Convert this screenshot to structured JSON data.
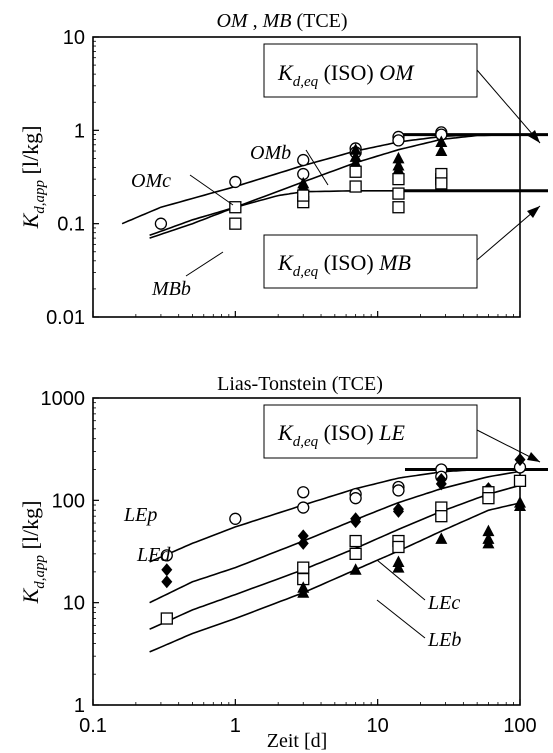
{
  "chart_data": [
    {
      "type": "scatter",
      "title": "OM , MB (TCE)",
      "title_parts": [
        "OM",
        " , ",
        "MB",
        " (TCE)"
      ],
      "ylabel": "K d,app [l/kg]",
      "xlabel": "",
      "x_scale": "log",
      "y_scale": "log",
      "xlim": [
        0.1,
        100
      ],
      "ylim": [
        0.01,
        10
      ],
      "y_ticks": [
        "0.01",
        "0.1",
        "1",
        "10"
      ],
      "x_ticks": [],
      "grid": false,
      "series": [
        {
          "name": "OMc",
          "marker": "circle",
          "points": [
            [
              0.3,
              0.1
            ],
            [
              1,
              0.28
            ],
            [
              3,
              0.48
            ],
            [
              3,
              0.34
            ],
            [
              7,
              0.64
            ],
            [
              7,
              0.58
            ],
            [
              14,
              0.85
            ],
            [
              14,
              0.78
            ],
            [
              28,
              0.95
            ],
            [
              28,
              0.9
            ]
          ]
        },
        {
          "name": "OMb",
          "marker": "triangle",
          "points": [
            [
              3,
              0.27
            ],
            [
              3,
              0.25
            ],
            [
              7,
              0.62
            ],
            [
              7,
              0.52
            ],
            [
              7,
              0.45
            ],
            [
              14,
              0.5
            ],
            [
              14,
              0.42
            ],
            [
              14,
              0.38
            ],
            [
              28,
              0.75
            ],
            [
              28,
              0.6
            ]
          ]
        },
        {
          "name": "MBb",
          "marker": "square",
          "points": [
            [
              1,
              0.1
            ],
            [
              1,
              0.15
            ],
            [
              3,
              0.17
            ],
            [
              3,
              0.2
            ],
            [
              7,
              0.36
            ],
            [
              7,
              0.25
            ],
            [
              14,
              0.15
            ],
            [
              14,
              0.21
            ],
            [
              14,
              0.3
            ],
            [
              28,
              0.3
            ],
            [
              28,
              0.34
            ],
            [
              28,
              0.27
            ]
          ]
        }
      ],
      "fit_curves": [
        {
          "name": "OMc",
          "points": [
            [
              0.16,
              0.1
            ],
            [
              0.3,
              0.15
            ],
            [
              1,
              0.25
            ],
            [
              3,
              0.42
            ],
            [
              7,
              0.6
            ],
            [
              14,
              0.75
            ],
            [
              28,
              0.86
            ],
            [
              50,
              0.9
            ],
            [
              100,
              0.9
            ]
          ]
        },
        {
          "name": "OMb",
          "points": [
            [
              0.25,
              0.07
            ],
            [
              0.5,
              0.1
            ],
            [
              1,
              0.15
            ],
            [
              3,
              0.28
            ],
            [
              7,
              0.45
            ],
            [
              14,
              0.62
            ],
            [
              28,
              0.8
            ],
            [
              50,
              0.88
            ],
            [
              100,
              0.9
            ]
          ]
        },
        {
          "name": "MBb",
          "points": [
            [
              0.25,
              0.075
            ],
            [
              0.5,
              0.11
            ],
            [
              1,
              0.15
            ],
            [
              2,
              0.2
            ],
            [
              3,
              0.22
            ],
            [
              7,
              0.225
            ],
            [
              14,
              0.225
            ],
            [
              50,
              0.225
            ],
            [
              100,
              0.225
            ]
          ]
        }
      ],
      "equilibrium_lines": [
        {
          "name": "OM",
          "value": 0.9
        },
        {
          "name": "MB",
          "value": 0.225
        }
      ],
      "annotations": [
        {
          "label_main": "K",
          "label_sub": "d,eq",
          "label_text": " (ISO) ",
          "label_italic": "OM"
        },
        {
          "label_main": "K",
          "label_sub": "d,eq",
          "label_text": " (ISO) ",
          "label_italic": "MB"
        }
      ]
    },
    {
      "type": "scatter",
      "title": "Lias-Tonstein (TCE)",
      "ylabel": "K d,app [l/kg]",
      "xlabel": "Zeit [d]",
      "x_scale": "log",
      "y_scale": "log",
      "xlim": [
        0.1,
        100
      ],
      "ylim": [
        1,
        1000
      ],
      "y_ticks": [
        "1",
        "10",
        "100",
        "1000"
      ],
      "x_ticks": [
        "0.1",
        "1",
        "10",
        "100"
      ],
      "grid": false,
      "series": [
        {
          "name": "LEp",
          "marker": "circle",
          "points": [
            [
              0.33,
              29
            ],
            [
              1,
              66
            ],
            [
              3,
              120
            ],
            [
              3,
              85
            ],
            [
              7,
              115
            ],
            [
              7,
              105
            ],
            [
              14,
              135
            ],
            [
              14,
              125
            ],
            [
              28,
              200
            ],
            [
              28,
              170
            ],
            [
              100,
              210
            ]
          ]
        },
        {
          "name": "LEd",
          "marker": "diamond",
          "points": [
            [
              0.33,
              21
            ],
            [
              0.33,
              16
            ],
            [
              3,
              45
            ],
            [
              3,
              38
            ],
            [
              7,
              66
            ],
            [
              7,
              62
            ],
            [
              14,
              82
            ],
            [
              14,
              78
            ],
            [
              28,
              160
            ],
            [
              28,
              145
            ],
            [
              60,
              130
            ],
            [
              100,
              250
            ]
          ]
        },
        {
          "name": "LEc",
          "marker": "square",
          "points": [
            [
              0.33,
              7
            ],
            [
              3,
              22
            ],
            [
              3,
              17
            ],
            [
              7,
              40
            ],
            [
              7,
              30
            ],
            [
              14,
              40
            ],
            [
              14,
              35
            ],
            [
              28,
              85
            ],
            [
              28,
              70
            ],
            [
              60,
              120
            ],
            [
              60,
              105
            ],
            [
              100,
              155
            ]
          ]
        },
        {
          "name": "LEb",
          "marker": "triangle",
          "points": [
            [
              3,
              14
            ],
            [
              3,
              12.5
            ],
            [
              7,
              21
            ],
            [
              14,
              25
            ],
            [
              14,
              22
            ],
            [
              28,
              42
            ],
            [
              60,
              50
            ],
            [
              60,
              42
            ],
            [
              60,
              38
            ],
            [
              100,
              95
            ],
            [
              100,
              88
            ]
          ]
        }
      ],
      "fit_curves": [
        {
          "name": "LEp",
          "points": [
            [
              0.25,
              25
            ],
            [
              0.5,
              38
            ],
            [
              1,
              55
            ],
            [
              3,
              90
            ],
            [
              7,
              130
            ],
            [
              14,
              165
            ],
            [
              28,
              190
            ],
            [
              50,
              200
            ],
            [
              100,
              200
            ]
          ]
        },
        {
          "name": "LEd",
          "points": [
            [
              0.25,
              10
            ],
            [
              0.5,
              16
            ],
            [
              1,
              22
            ],
            [
              3,
              40
            ],
            [
              7,
              65
            ],
            [
              14,
              95
            ],
            [
              28,
              130
            ],
            [
              60,
              170
            ],
            [
              120,
              200
            ]
          ]
        },
        {
          "name": "LEc",
          "points": [
            [
              0.25,
              5.5
            ],
            [
              0.5,
              8.5
            ],
            [
              1,
              12
            ],
            [
              3,
              21
            ],
            [
              7,
              34
            ],
            [
              14,
              52
            ],
            [
              28,
              78
            ],
            [
              60,
              115
            ],
            [
              120,
              150
            ]
          ]
        },
        {
          "name": "LEb",
          "points": [
            [
              0.25,
              3.3
            ],
            [
              0.5,
              5
            ],
            [
              1,
              7
            ],
            [
              3,
              12.5
            ],
            [
              7,
              21
            ],
            [
              14,
              32
            ],
            [
              28,
              50
            ],
            [
              60,
              80
            ],
            [
              120,
              100
            ]
          ]
        }
      ],
      "equilibrium_lines": [
        {
          "name": "LE",
          "value": 200
        }
      ],
      "annotations": [
        {
          "label_main": "K",
          "label_sub": "d,eq",
          "label_text": " (ISO) ",
          "label_italic": "LE"
        }
      ]
    }
  ]
}
